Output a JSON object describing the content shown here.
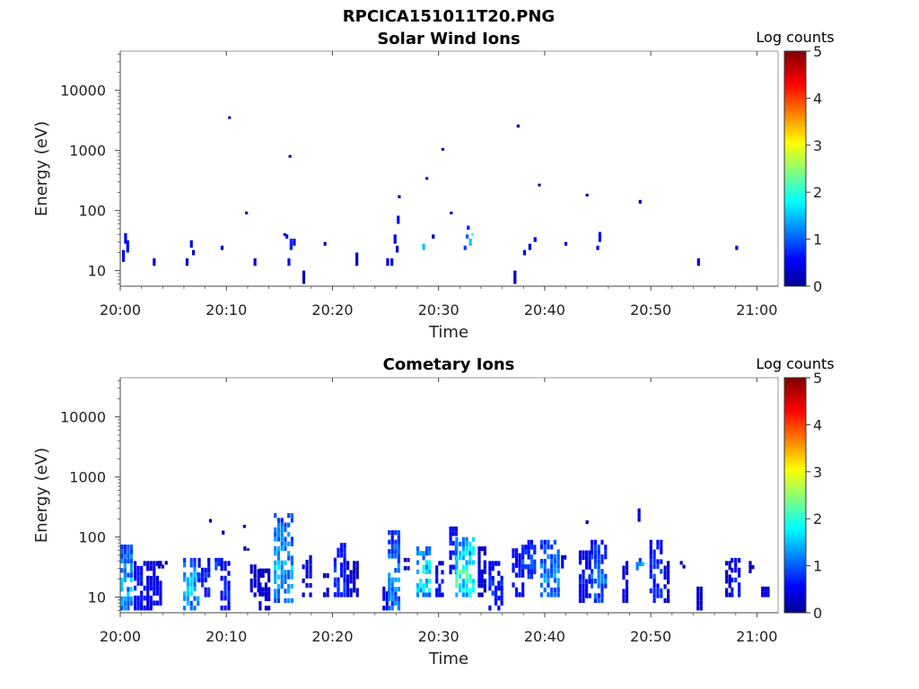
{
  "figure": {
    "title": "RPCICA151011T20.PNG"
  },
  "chart_data": [
    {
      "type": "heatmap",
      "title": "Solar Wind Ions",
      "xlabel": "Time",
      "ylabel": "Energy (eV)",
      "x_ticks": [
        "20:00",
        "20:10",
        "20:20",
        "20:30",
        "20:40",
        "20:50",
        "21:00"
      ],
      "x_range_minutes": [
        0,
        62
      ],
      "y_ticks": [
        "10",
        "100",
        "1000",
        "10000"
      ],
      "y_scale": "log",
      "y_range": [
        5.5,
        45000
      ],
      "colorbar": {
        "label": "Log counts",
        "range": [
          0,
          5
        ],
        "ticks": [
          "0",
          "1",
          "2",
          "3",
          "4",
          "5"
        ],
        "colormap": "jet"
      },
      "pixels": [
        [
          0.3,
          14,
          22,
          0.4
        ],
        [
          0.5,
          28,
          42,
          0.5
        ],
        [
          0.7,
          20,
          32,
          0.6
        ],
        [
          3.2,
          12,
          16,
          0.3
        ],
        [
          6.3,
          12,
          16,
          0.3
        ],
        [
          6.7,
          24,
          32,
          0.4
        ],
        [
          6.9,
          18,
          22,
          0.3
        ],
        [
          9.6,
          22,
          26,
          0.2
        ],
        [
          10.3,
          3400,
          3700,
          0.1
        ],
        [
          11.9,
          88,
          96,
          0.2
        ],
        [
          12.7,
          12,
          16,
          0.3
        ],
        [
          15.5,
          38,
          42,
          0.4
        ],
        [
          15.7,
          34,
          40,
          0.5
        ],
        [
          15.9,
          12,
          16,
          0.6
        ],
        [
          16.1,
          22,
          34,
          0.7
        ],
        [
          16.4,
          26,
          34,
          0.4
        ],
        [
          16.0,
          780,
          840,
          0.1
        ],
        [
          17.3,
          6,
          10,
          0.2
        ],
        [
          19.3,
          26,
          30,
          0.2
        ],
        [
          22.3,
          12,
          20,
          0.3
        ],
        [
          25.2,
          12,
          16,
          0.3
        ],
        [
          25.6,
          12,
          16,
          0.4
        ],
        [
          25.9,
          28,
          40,
          0.5
        ],
        [
          26.1,
          20,
          26,
          0.4
        ],
        [
          26.2,
          60,
          82,
          0.6
        ],
        [
          26.3,
          160,
          180,
          0.2
        ],
        [
          28.6,
          22,
          28,
          1.5
        ],
        [
          28.9,
          340,
          360,
          0.2
        ],
        [
          29.5,
          34,
          40,
          0.3
        ],
        [
          30.4,
          1000,
          1100,
          0.2
        ],
        [
          31.2,
          88,
          96,
          0.3
        ],
        [
          32.5,
          22,
          26,
          0.8
        ],
        [
          32.7,
          34,
          40,
          1.0
        ],
        [
          32.8,
          48,
          56,
          0.7
        ],
        [
          33.0,
          26,
          34,
          1.5
        ],
        [
          33.2,
          38,
          42,
          2.1
        ],
        [
          37.2,
          6,
          10,
          0.3
        ],
        [
          37.5,
          2400,
          2700,
          0.1
        ],
        [
          38.1,
          18,
          22,
          0.4
        ],
        [
          38.6,
          22,
          28,
          0.4
        ],
        [
          39.1,
          30,
          36,
          0.4
        ],
        [
          39.5,
          260,
          280,
          0.1
        ],
        [
          42.0,
          26,
          30,
          0.2
        ],
        [
          44.0,
          175,
          190,
          0.1
        ],
        [
          45.0,
          22,
          26,
          0.5
        ],
        [
          45.2,
          30,
          44,
          0.6
        ],
        [
          49.0,
          130,
          150,
          0.3
        ],
        [
          54.5,
          12,
          16,
          0.4
        ],
        [
          58.1,
          22,
          26,
          0.4
        ]
      ]
    },
    {
      "type": "heatmap",
      "title": "Cometary Ions",
      "xlabel": "Time",
      "ylabel": "Energy (eV)",
      "x_ticks": [
        "20:00",
        "20:10",
        "20:20",
        "20:30",
        "20:40",
        "20:50",
        "21:00"
      ],
      "x_range_minutes": [
        0,
        62
      ],
      "y_ticks": [
        "10",
        "100",
        "1000",
        "10000"
      ],
      "y_scale": "log",
      "y_range": [
        5.5,
        45000
      ],
      "colorbar": {
        "label": "Log counts",
        "range": [
          0,
          5
        ],
        "ticks": [
          "0",
          "1",
          "2",
          "3",
          "4",
          "5"
        ],
        "colormap": "jet"
      },
      "clusters": [
        [
          0.6,
          1.2,
          6,
          75,
          1.8
        ],
        [
          2.0,
          1.5,
          6,
          40,
          0.9
        ],
        [
          3.2,
          1.5,
          6,
          40,
          0.6
        ],
        [
          4.0,
          1.0,
          30,
          40,
          0.3
        ],
        [
          6.7,
          1.6,
          6,
          45,
          1.9
        ],
        [
          7.9,
          1.2,
          10,
          45,
          1.0
        ],
        [
          9.3,
          0.8,
          28,
          45,
          1.2
        ],
        [
          8.5,
          0.4,
          180,
          200,
          0.3
        ],
        [
          9.7,
          0.4,
          110,
          150,
          0.2
        ],
        [
          9.9,
          1.0,
          6,
          40,
          0.9
        ],
        [
          11.7,
          0.4,
          150,
          160,
          0.3
        ],
        [
          11.9,
          0.6,
          60,
          70,
          0.3
        ],
        [
          12.7,
          1.0,
          10,
          35,
          0.4
        ],
        [
          13.6,
          1.1,
          6,
          30,
          0.4
        ],
        [
          15.4,
          1.9,
          8,
          250,
          1.8
        ],
        [
          17.6,
          1.0,
          10,
          50,
          0.5
        ],
        [
          19.4,
          0.6,
          10,
          25,
          0.3
        ],
        [
          20.7,
          1.2,
          10,
          80,
          1.1
        ],
        [
          21.9,
          1.2,
          10,
          40,
          0.4
        ],
        [
          25.0,
          0.6,
          6,
          15,
          0.7
        ],
        [
          25.8,
          1.2,
          6,
          130,
          1.6
        ],
        [
          27.0,
          0.6,
          28,
          45,
          0.4
        ],
        [
          28.6,
          1.4,
          10,
          70,
          2.3
        ],
        [
          30.1,
          0.8,
          10,
          40,
          0.8
        ],
        [
          31.4,
          0.8,
          20,
          150,
          1.0
        ],
        [
          32.5,
          1.9,
          10,
          100,
          2.6
        ],
        [
          34.1,
          0.8,
          10,
          70,
          0.5
        ],
        [
          35.4,
          1.4,
          6,
          40,
          1.0
        ],
        [
          37.5,
          1.2,
          10,
          65,
          0.8
        ],
        [
          38.5,
          1.4,
          20,
          90,
          1.2
        ],
        [
          40.5,
          1.9,
          10,
          90,
          1.6
        ],
        [
          41.8,
          0.5,
          30,
          50,
          0.7
        ],
        [
          43.8,
          1.2,
          8,
          60,
          0.8
        ],
        [
          45.1,
          1.6,
          8,
          90,
          1.4
        ],
        [
          44.0,
          0.4,
          170,
          190,
          0.2
        ],
        [
          47.6,
          0.6,
          8,
          40,
          0.6
        ],
        [
          49.0,
          0.8,
          28,
          45,
          1.8
        ],
        [
          48.9,
          0.4,
          180,
          300,
          0.6
        ],
        [
          50.5,
          1.3,
          8,
          90,
          1.0
        ],
        [
          51.5,
          0.6,
          8,
          40,
          0.5
        ],
        [
          53.0,
          0.5,
          30,
          40,
          0.3
        ],
        [
          54.6,
          0.6,
          6,
          15,
          0.4
        ],
        [
          57.3,
          0.6,
          10,
          40,
          0.3
        ],
        [
          58.0,
          1.0,
          10,
          45,
          0.9
        ],
        [
          60.8,
          0.8,
          10,
          15,
          0.5
        ],
        [
          59.5,
          0.5,
          25,
          40,
          0.3
        ]
      ]
    }
  ]
}
